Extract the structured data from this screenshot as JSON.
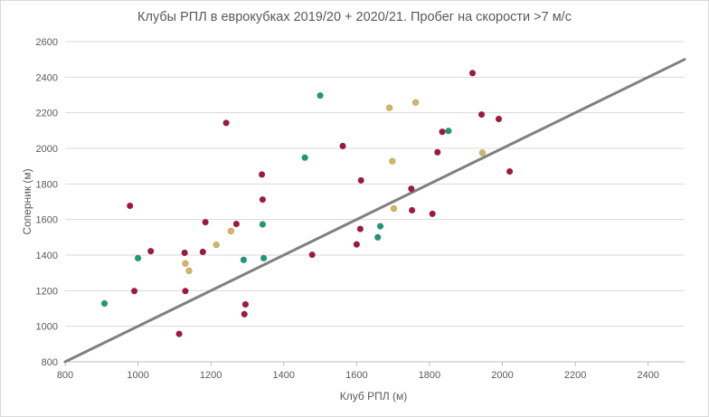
{
  "chart_data": {
    "type": "scatter",
    "title": "Клубы РПЛ в еврокубках 2019/20 + 2020/21. Пробег на скорости >7 м/с",
    "xlabel": "Клуб РПЛ (м)",
    "ylabel": "Соперник (м)",
    "xlim": [
      800,
      2500
    ],
    "ylim": [
      800,
      2600
    ],
    "x_ticks": [
      "800",
      "1000",
      "1200",
      "1400",
      "1600",
      "1800",
      "2000",
      "2200",
      "2400"
    ],
    "y_ticks": [
      "800",
      "1000",
      "1200",
      "1400",
      "1600",
      "1800",
      "2000",
      "2200",
      "2400",
      "2600"
    ],
    "grid": "horizontal",
    "legend": "none",
    "reference_line": {
      "points": [
        [
          800,
          800
        ],
        [
          2500,
          2500
        ]
      ],
      "color": "#808080"
    },
    "series": [
      {
        "color": "#a5173a",
        "points": [
          [
            978,
            1677
          ],
          [
            990,
            1198
          ],
          [
            1035,
            1422
          ],
          [
            1113,
            957
          ],
          [
            1128,
            1413
          ],
          [
            1130,
            1198
          ],
          [
            1178,
            1418
          ],
          [
            1185,
            1585
          ],
          [
            1242,
            2143
          ],
          [
            1270,
            1575
          ],
          [
            1292,
            1068
          ],
          [
            1295,
            1123
          ],
          [
            1340,
            1853
          ],
          [
            1342,
            1712
          ],
          [
            1478,
            1402
          ],
          [
            1562,
            2013
          ],
          [
            1600,
            1460
          ],
          [
            1610,
            1547
          ],
          [
            1612,
            1820
          ],
          [
            1750,
            1773
          ],
          [
            1752,
            1652
          ],
          [
            1808,
            1632
          ],
          [
            1822,
            1978
          ],
          [
            1835,
            2093
          ],
          [
            1918,
            2423
          ],
          [
            1943,
            2190
          ],
          [
            1990,
            2165
          ],
          [
            2020,
            1870
          ]
        ]
      },
      {
        "color": "#1a9a7a",
        "points": [
          [
            908,
            1128
          ],
          [
            1000,
            1383
          ],
          [
            1290,
            1373
          ],
          [
            1342,
            1573
          ],
          [
            1345,
            1383
          ],
          [
            1458,
            1948
          ],
          [
            1500,
            2297
          ],
          [
            1658,
            1500
          ],
          [
            1665,
            1562
          ],
          [
            1852,
            2098
          ]
        ]
      },
      {
        "color": "#d4b85a",
        "points": [
          [
            1130,
            1353
          ],
          [
            1140,
            1312
          ],
          [
            1215,
            1458
          ],
          [
            1255,
            1535
          ],
          [
            1690,
            2228
          ],
          [
            1698,
            1928
          ],
          [
            1702,
            1662
          ],
          [
            1762,
            2258
          ],
          [
            1945,
            1975
          ]
        ]
      }
    ]
  }
}
